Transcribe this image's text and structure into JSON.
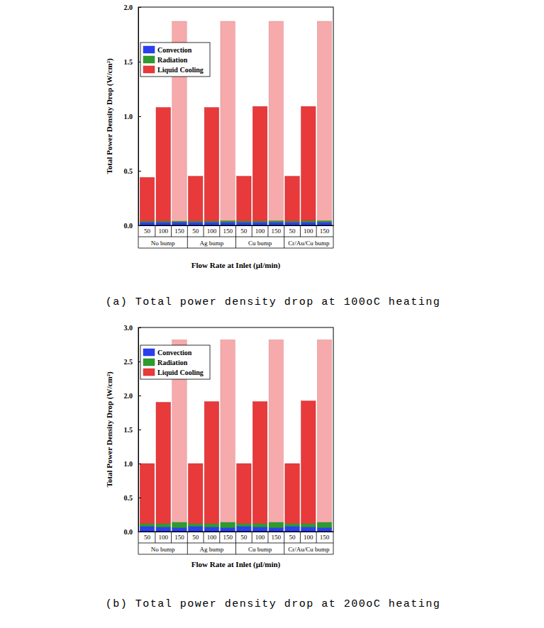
{
  "chart_data": [
    {
      "type": "bar",
      "stacked": true,
      "caption": "(a) Total power density drop at 100oC heating",
      "x_label": "Flow Rate at Inlet (µl/min)",
      "y_label": "Total Power Density Drop (W/cm²)",
      "categories": [
        "50",
        "100",
        "150",
        "50",
        "100",
        "150",
        "50",
        "100",
        "150",
        "50",
        "100",
        "150"
      ],
      "groups": [
        "No bump",
        "Ag bump",
        "Cu bump",
        "Cr/Au/Cu bump"
      ],
      "ylim": [
        0,
        2.0
      ],
      "yticks": [
        {
          "value": 0,
          "label": "0.0"
        },
        {
          "value": 0.5,
          "label": "0.5"
        },
        {
          "value": 1.0,
          "label": "1.0"
        },
        {
          "value": 1.5,
          "label": "1.5"
        },
        {
          "value": 2.0,
          "label": "2.0"
        }
      ],
      "legend": "upper left",
      "series": [
        {
          "name": "Convection",
          "color": "#2b3ff0",
          "values": [
            0.03,
            0.03,
            0.03,
            0.03,
            0.03,
            0.03,
            0.03,
            0.03,
            0.03,
            0.03,
            0.03,
            0.03
          ]
        },
        {
          "name": "Radiation",
          "color": "#2e9b2e",
          "values": [
            0.01,
            0.01,
            0.01,
            0.01,
            0.01,
            0.015,
            0.01,
            0.01,
            0.015,
            0.01,
            0.015,
            0.015
          ]
        },
        {
          "name": "Liquid Cooling",
          "color": "#e8393b",
          "colors": [
            "#e8393b",
            "#e8393b",
            "#f6aaab",
            "#e8393b",
            "#e8393b",
            "#f6aaab",
            "#e8393b",
            "#e8393b",
            "#f6aaab",
            "#e8393b",
            "#e8393b",
            "#f6aaab"
          ],
          "values": [
            0.4,
            1.04,
            1.83,
            0.41,
            1.04,
            1.825,
            0.41,
            1.05,
            1.825,
            0.41,
            1.045,
            1.825
          ]
        }
      ]
    },
    {
      "type": "bar",
      "stacked": true,
      "caption": "(b) Total power density drop at 200oC heating",
      "x_label": "Flow Rate at Inlet (µl/min)",
      "y_label": "Total Power Density Drop (W/cm²)",
      "categories": [
        "50",
        "100",
        "150",
        "50",
        "100",
        "150",
        "50",
        "100",
        "150",
        "50",
        "100",
        "150"
      ],
      "groups": [
        "No bump",
        "Ag bump",
        "Cu bump",
        "Cr/Au/Cu bump"
      ],
      "ylim": [
        0,
        3.0
      ],
      "yticks": [
        {
          "value": 0,
          "label": "0.0"
        },
        {
          "value": 0.5,
          "label": "0.5"
        },
        {
          "value": 1.0,
          "label": "1.0"
        },
        {
          "value": 1.5,
          "label": "1.5"
        },
        {
          "value": 2.0,
          "label": "2.0"
        },
        {
          "value": 2.5,
          "label": "2.5"
        },
        {
          "value": 3.0,
          "label": "3.0"
        }
      ],
      "legend": "upper left",
      "series": [
        {
          "name": "Convection",
          "color": "#2b3ff0",
          "values": [
            0.08,
            0.07,
            0.06,
            0.08,
            0.07,
            0.06,
            0.08,
            0.07,
            0.06,
            0.08,
            0.07,
            0.06
          ]
        },
        {
          "name": "Radiation",
          "color": "#2e9b2e",
          "values": [
            0.04,
            0.05,
            0.08,
            0.04,
            0.05,
            0.08,
            0.04,
            0.05,
            0.08,
            0.04,
            0.05,
            0.08
          ]
        },
        {
          "name": "Liquid Cooling",
          "color": "#e8393b",
          "colors": [
            "#e8393b",
            "#e8393b",
            "#f6aaab",
            "#e8393b",
            "#e8393b",
            "#f6aaab",
            "#e8393b",
            "#e8393b",
            "#f6aaab",
            "#e8393b",
            "#e8393b",
            "#f6aaab"
          ],
          "values": [
            0.88,
            1.78,
            2.68,
            0.88,
            1.79,
            2.68,
            0.88,
            1.79,
            2.68,
            0.88,
            1.8,
            2.68
          ]
        }
      ]
    }
  ]
}
